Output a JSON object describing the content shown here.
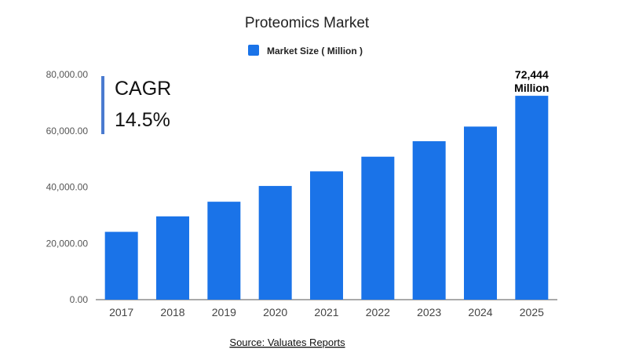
{
  "chart_data": {
    "type": "bar",
    "title": "Proteomics Market",
    "categories": [
      "2017",
      "2018",
      "2019",
      "2020",
      "2021",
      "2022",
      "2023",
      "2024",
      "2025"
    ],
    "series": [
      {
        "name": "Market Size ( Million )",
        "color": "#1a73e8",
        "values": [
          24100,
          29600,
          34800,
          40400,
          45600,
          50800,
          56300,
          61500,
          72444
        ]
      }
    ],
    "xlabel": "",
    "ylabel": "",
    "ylim": [
      0,
      80000
    ],
    "yticks": [
      "0.00",
      "20,000.00",
      "40,000.00",
      "60,000.00",
      "80,000.00"
    ],
    "grid": false,
    "legend_position": "top-center",
    "annotation": {
      "line1": "72,444",
      "line2": "Million",
      "category": "2025"
    },
    "cagr": {
      "label": "CAGR",
      "value": "14.5%",
      "accent": "#4a7bd0"
    },
    "source": "Source: Valuates Reports"
  }
}
